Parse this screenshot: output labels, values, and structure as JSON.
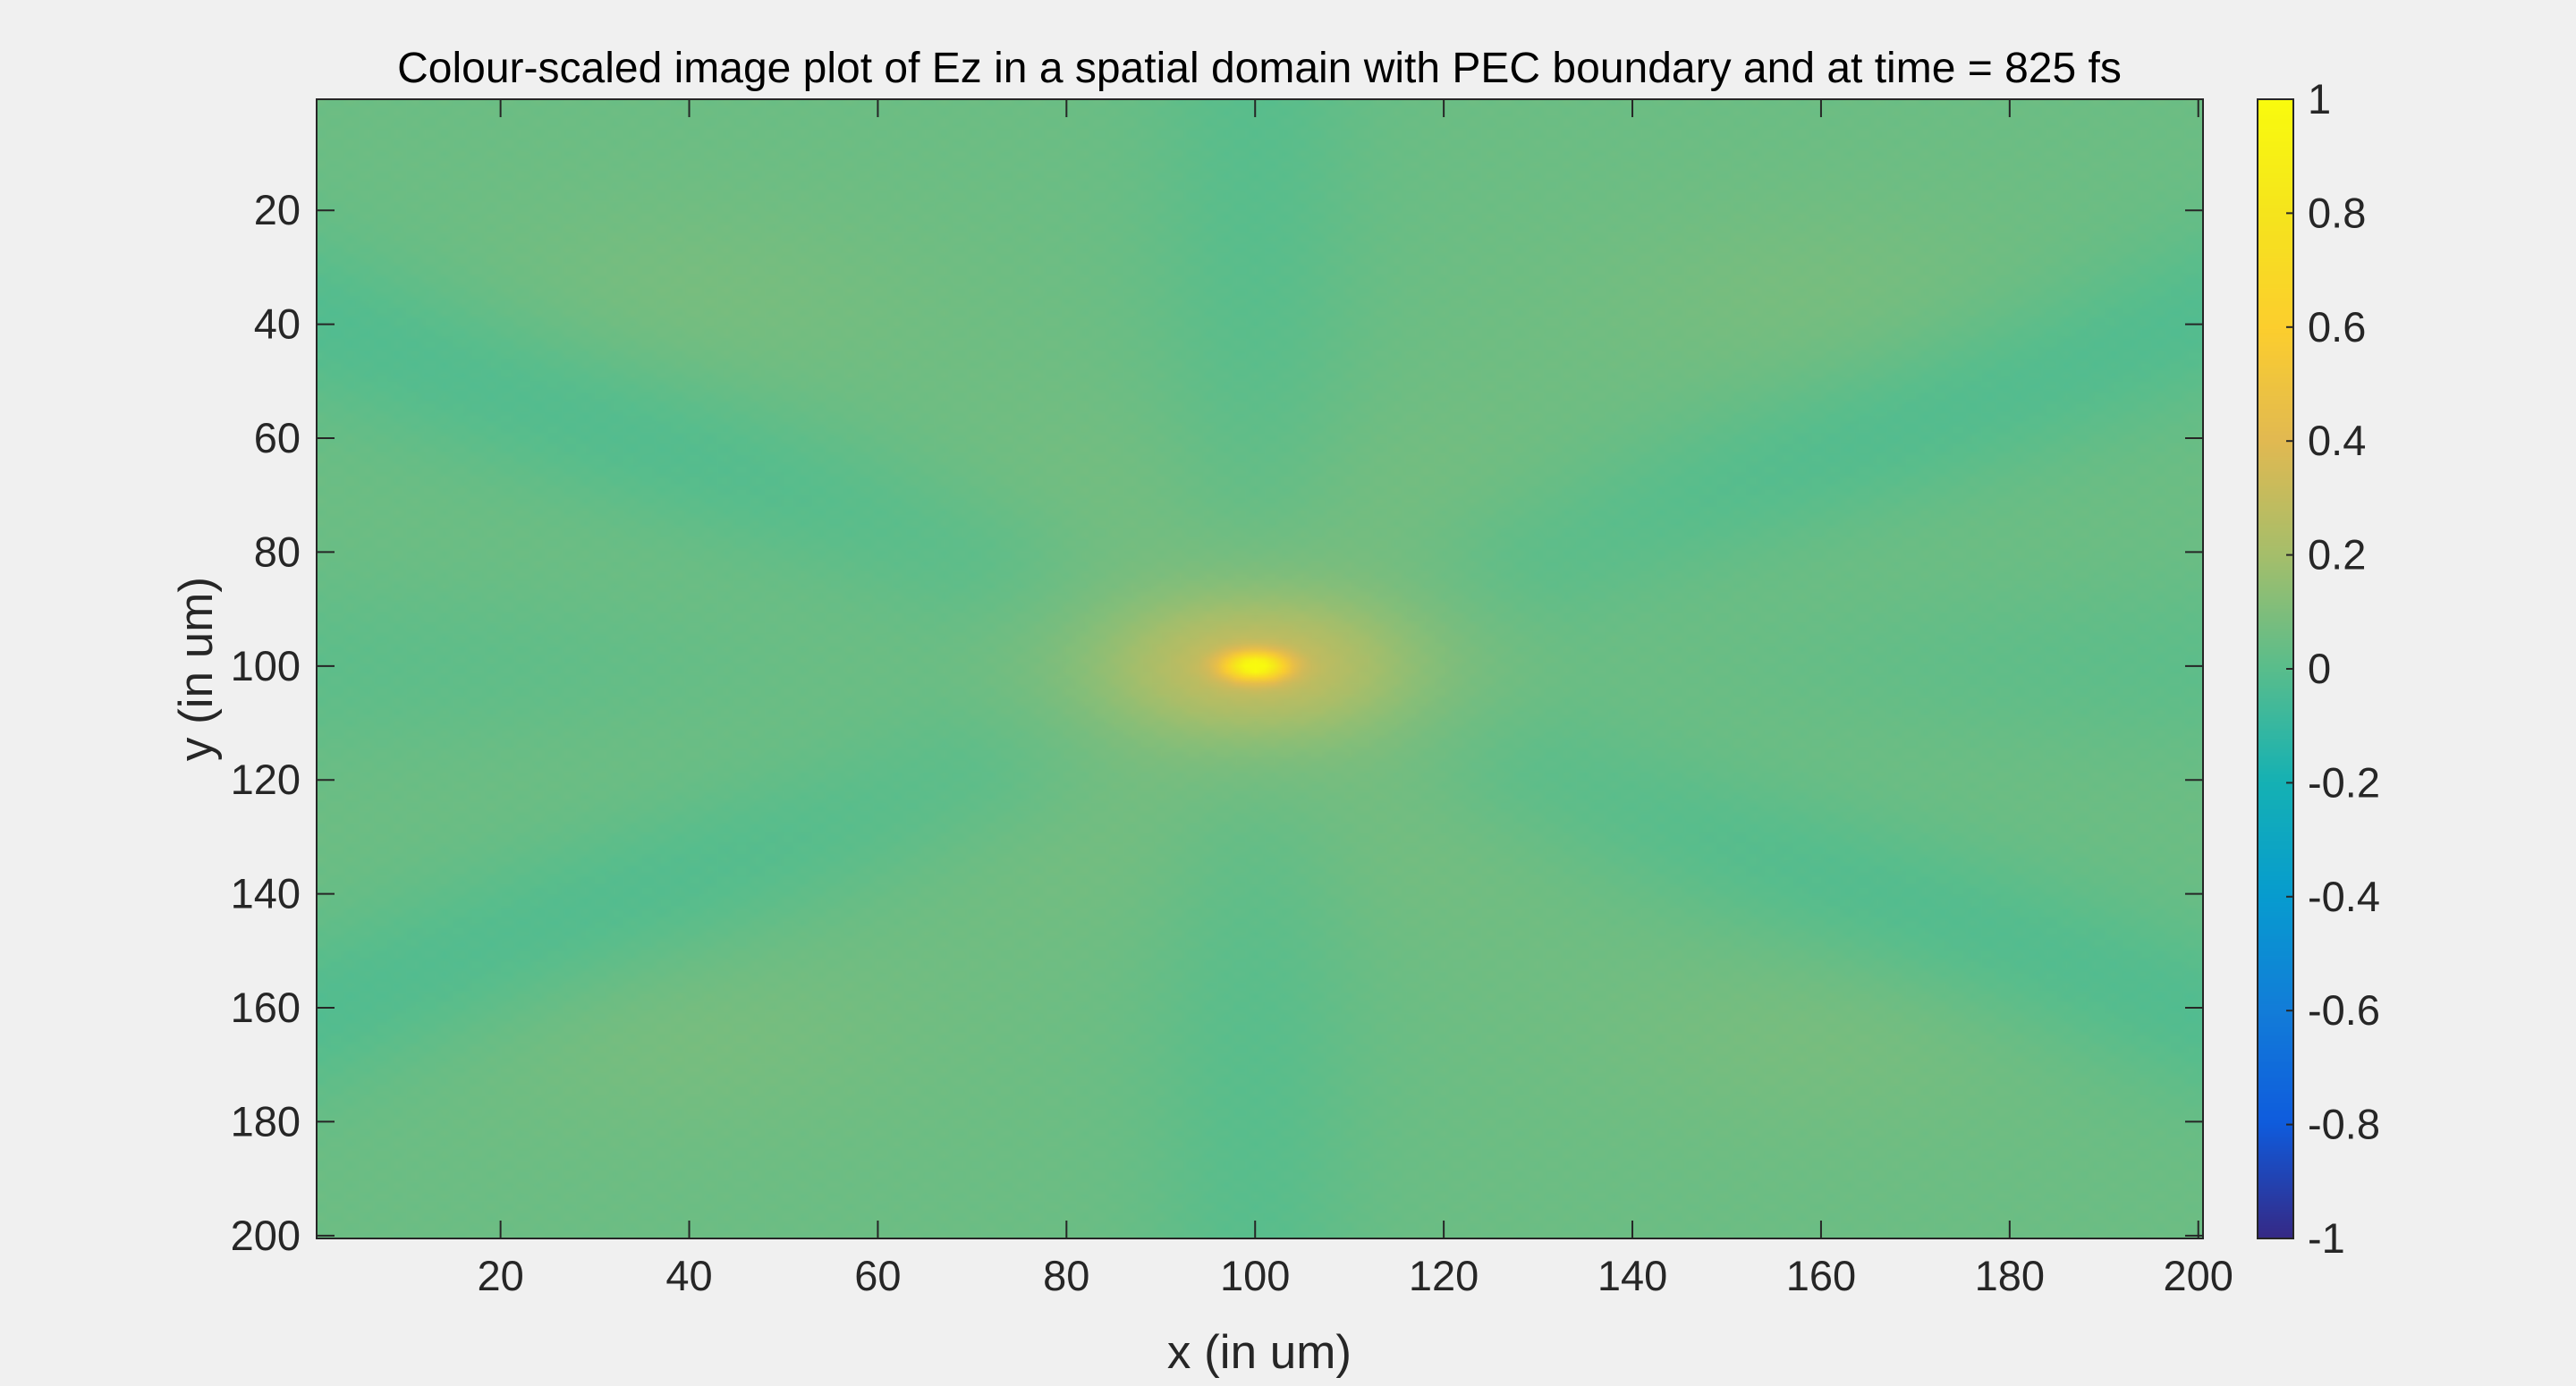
{
  "chart_data": {
    "type": "heatmap",
    "title": "Colour-scaled image plot of Ez in a spatial domain with PEC boundary and at time = 825 fs",
    "xlabel": "x (in um)",
    "ylabel": "y (in um)",
    "x_ticks": [
      "20",
      "40",
      "60",
      "80",
      "100",
      "120",
      "140",
      "160",
      "180",
      "200"
    ],
    "y_ticks": [
      "20",
      "40",
      "60",
      "80",
      "100",
      "120",
      "140",
      "160",
      "180",
      "200"
    ],
    "xlim": [
      0.5,
      200.5
    ],
    "ylim": [
      0.5,
      200.5
    ],
    "y_axis_reversed": true,
    "colormap": "parula",
    "clim": [
      -1,
      1
    ],
    "colorbar_ticks": [
      "1",
      "0.8",
      "0.6",
      "0.4",
      "0.2",
      "0",
      "-0.2",
      "-0.4",
      "-0.6",
      "-0.8",
      "-1"
    ],
    "source_center": [
      100,
      100
    ],
    "peak_value": 1,
    "background_value": 0.05,
    "grid": false,
    "colorbar_location": "right"
  },
  "colors": {
    "background": "#f0f0f0",
    "axis": "#262626"
  }
}
